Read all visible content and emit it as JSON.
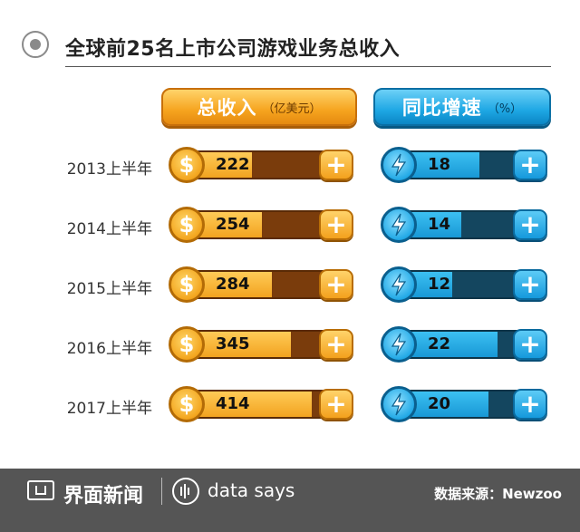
{
  "title": "全球前25名上市公司游戏业务总收入",
  "headers": {
    "revenue_label": "总收入",
    "revenue_unit": "（亿美元）",
    "growth_label": "同比增速",
    "growth_unit": "（%）"
  },
  "icons": {
    "coin": "dollar-coin-icon",
    "bolt": "lightning-coin-icon",
    "plus": "plus-icon",
    "coin_symbol": "$",
    "plus_symbol": "+"
  },
  "colors": {
    "revenue_fill": "#f2a320",
    "revenue_track": "#7a3c0c",
    "growth_fill": "#1898d6",
    "growth_track": "#14465f",
    "footer": "#555555"
  },
  "chart_data": {
    "type": "bar",
    "categories": [
      "2013上半年",
      "2014上半年",
      "2015上半年",
      "2016上半年",
      "2017上半年"
    ],
    "series": [
      {
        "name": "总收入（亿美元）",
        "values": [
          222,
          254,
          284,
          345,
          414
        ]
      },
      {
        "name": "同比增速（%）",
        "values": [
          18,
          14,
          12,
          22,
          20
        ]
      }
    ]
  },
  "footer": {
    "brand": "界面新闻",
    "tag": "data says",
    "source": "数据来源：Newzoo"
  }
}
